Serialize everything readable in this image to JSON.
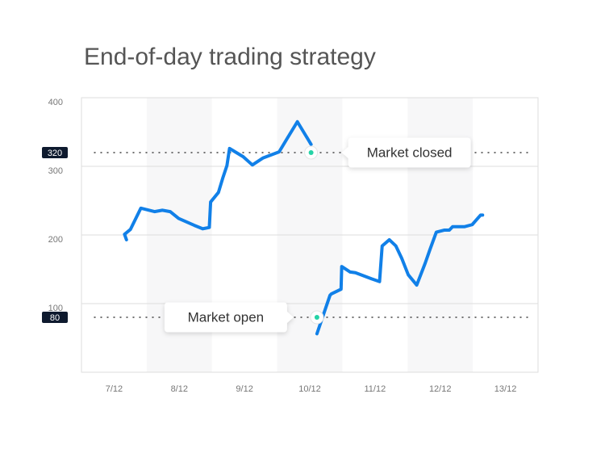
{
  "chart_data": {
    "type": "line",
    "title": "End-of-day trading strategy",
    "xlim": [
      6.5,
      13.5
    ],
    "xticks": [
      {
        "value": 7,
        "label": "7/12"
      },
      {
        "value": 8,
        "label": "8/12"
      },
      {
        "value": 9,
        "label": "9/12"
      },
      {
        "value": 10,
        "label": "10/12"
      },
      {
        "value": 11,
        "label": "11/12"
      },
      {
        "value": 12,
        "label": "12/12"
      },
      {
        "value": 13,
        "label": "13/12"
      }
    ],
    "ylim": [
      0,
      400
    ],
    "yticks": [
      100,
      200,
      300,
      400
    ],
    "grid": true,
    "x": [
      7.19,
      7.16,
      7.25,
      7.41,
      7.62,
      7.74,
      7.86,
      7.99,
      8.23,
      8.36,
      8.46,
      8.48,
      8.6,
      8.67,
      8.73,
      8.77,
      8.98,
      9.12,
      9.28,
      9.53,
      9.65,
      9.81,
      10.02,
      null,
      10.11,
      10.31,
      10.33,
      10.48,
      10.49,
      10.62,
      10.7,
      10.95,
      11.07,
      11.11,
      11.22,
      11.32,
      11.41,
      11.51,
      11.64,
      11.77,
      11.84,
      11.94,
      12.06,
      12.14,
      12.19,
      12.37,
      12.49,
      12.62,
      12.65
    ],
    "series": [
      {
        "color": "#1180e8",
        "values": [
          193,
          201,
          208,
          239,
          234,
          236,
          234,
          224,
          214,
          209,
          211,
          248,
          262,
          284,
          301,
          326,
          314,
          302,
          312,
          321,
          340,
          365,
          332,
          null,
          56,
          112,
          114,
          121,
          154,
          146,
          145,
          136,
          132,
          184,
          193,
          184,
          166,
          142,
          127,
          159,
          178,
          204,
          207,
          207,
          212,
          212,
          215,
          229,
          229
        ]
      }
    ],
    "reference_lines": [
      {
        "value": 320
      },
      {
        "value": 80
      }
    ],
    "annotations": [
      {
        "text": "Market closed",
        "x": 10.02,
        "y": 320
      },
      {
        "text": "Market open",
        "x": 10.11,
        "y": 80
      }
    ]
  }
}
